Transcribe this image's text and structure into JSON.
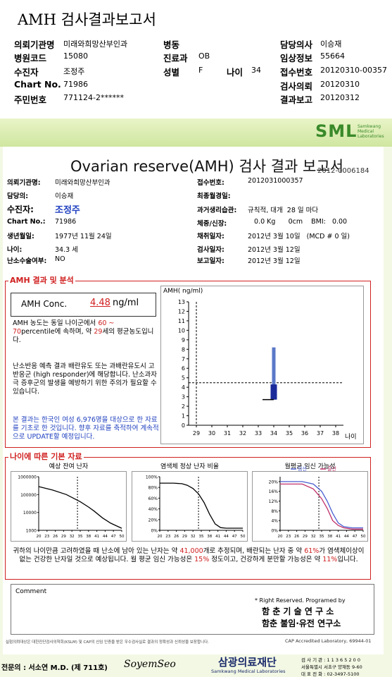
{
  "header": {
    "title": "AMH 검사결과보고서",
    "rows": [
      [
        {
          "label": "의뢰기관명",
          "value": "미래와희망산부인과"
        },
        {
          "label": "병동"
        },
        {
          "label": "담당의사",
          "value": "이승재"
        }
      ],
      [
        {
          "label": "병원코드",
          "value": "15080"
        },
        {
          "label": "진료과",
          "value": "OB"
        },
        {
          "label": "임상정보",
          "value": "55664"
        }
      ],
      [
        {
          "label": "수진자",
          "value": "조정주"
        },
        {
          "label": "성별",
          "value": "F"
        },
        {
          "label": "나이",
          "value": "34"
        },
        {
          "label": "접수번호",
          "value": "20120310-00357"
        }
      ],
      [
        {
          "label": "Chart No.",
          "value": "71986"
        },
        {
          "label": "검사의뢰",
          "value": "20120310"
        }
      ],
      [
        {
          "label": "주민번호",
          "value": "771124-2******"
        },
        {
          "label": "결과보고",
          "value": "20120312"
        }
      ]
    ]
  },
  "report": {
    "logo": "SML",
    "logo_sub": "Samkwang Medical Laboratories",
    "title": "Ovarian reserve(AMH) 검사 결과 보고서",
    "number": "2012-0006184",
    "left": [
      {
        "label": "의뢰기관명:",
        "value": "미래와희망산부인과"
      },
      {
        "label": "담당의:",
        "value": "이승재"
      },
      {
        "label": "수진자:",
        "value": "조정주"
      },
      {
        "label": "Chart No.:",
        "value": "71986"
      },
      {
        "label": "생년월일:",
        "value": "1977년 11월 24일"
      },
      {
        "label": "나이:",
        "value": "34.3 세"
      },
      {
        "label": "난소수술여부:",
        "value": "NO"
      }
    ],
    "right": [
      {
        "label": "접수번호:",
        "value": "2012031000357"
      },
      {
        "label": "최종월경일:"
      },
      {
        "label": "과거생리습관:",
        "value": "규칙적, 대개  28 일 마다"
      },
      {
        "label": "체중/신장:",
        "value": "   0.0 Kg      0cm    BMI:   0.00"
      },
      {
        "label": "채취일자:",
        "value": "2012년 3월 10일   (MCD # 0 일)"
      },
      {
        "label": "검사일자:",
        "value": "2012년 3월 12일"
      },
      {
        "label": "보고일자:",
        "value": "2012년 3월 12일"
      }
    ]
  },
  "amh": {
    "heading": "AMH 결과 및 분석",
    "conc_label": "AMH Conc.",
    "conc_value": "4.48",
    "conc_unit": "ng/ml",
    "para1": [
      "AMH 농도는 동일 나이군에서 ",
      "60 ~ 70",
      "percentile에 속하며, 약 ",
      "29",
      "세의 평균농도입니다."
    ],
    "para2": "난소반응 예측 결과 배란유도 또는 과배란유도시 고반응군 (high responder)에 해당합니다. 난소과자극 증후군의 발생을 예방하기 위한 주의가 필요할 수 있습니다.",
    "para3": "본 결과는 한국인 여성 6,976명을 대상으로 한 자료를 기초로 한 것입니다. 향후 자료를 축적하여 계속적으로 UPDATE할 예정입니다."
  },
  "amh_chart": {
    "ylabel": "AMH( ng/ml)",
    "xlabel": "나이",
    "ylim": [
      0,
      13
    ],
    "yticks": [
      0,
      1,
      2,
      3,
      4,
      5,
      6,
      7,
      8,
      9,
      10,
      11,
      12,
      13
    ],
    "xlim": [
      28.5,
      38.5
    ],
    "xticks": [
      29,
      30,
      31,
      32,
      33,
      34,
      35,
      36,
      37,
      38
    ],
    "bar_x": 34,
    "whisker": [
      2.7,
      8.2
    ],
    "box": [
      2.7,
      4.3
    ],
    "result": 4.48,
    "age_line": 29
  },
  "age_section": {
    "heading": "나이에 따른 기본 자료",
    "charts": [
      {
        "title": "예상 잔여 난자",
        "log": true,
        "ylim": [
          1000,
          1000000
        ],
        "yticks": [
          1000000,
          100000,
          10000,
          1000
        ],
        "xlim": [
          20,
          50
        ],
        "xticks": [
          20,
          23,
          26,
          29,
          32,
          35,
          38,
          41,
          44,
          47,
          50
        ],
        "marker_x": 34,
        "series": [
          {
            "color": "#000000",
            "x": [
              20,
              25,
              30,
              35,
              38,
              40,
              43,
              46,
              50
            ],
            "values": [
              280000,
              180000,
              100000,
              40000,
              20000,
              12000,
              5000,
              2500,
              1300
            ]
          }
        ]
      },
      {
        "title": "염색체 정상 난자 비율",
        "log": false,
        "ylim": [
          0,
          100
        ],
        "yticks": [
          {
            "value": 100,
            "label": "100%"
          },
          {
            "value": 80,
            "label": "80%"
          },
          {
            "value": 60,
            "label": "60%"
          },
          {
            "value": 40,
            "label": "40%"
          },
          {
            "value": 20,
            "label": "20%"
          },
          {
            "value": 0,
            "label": "0%"
          }
        ],
        "xlim": [
          20,
          50
        ],
        "xticks": [
          20,
          23,
          26,
          29,
          32,
          35,
          38,
          41,
          44,
          47,
          50
        ],
        "marker_x": 34,
        "series": [
          {
            "color": "#000000",
            "x": [
              20,
              25,
              28,
              30,
              32,
              34,
              36,
              38,
              40,
              42,
              44,
              46,
              50
            ],
            "values": [
              88,
              88,
              87,
              84,
              78,
              68,
              52,
              30,
              12,
              5,
              4,
              4,
              4
            ]
          }
        ]
      },
      {
        "title": "월평균 임신 가능성",
        "log": false,
        "ylim": [
          0,
          22
        ],
        "yticks": [
          {
            "value": 20,
            "label": "20%"
          },
          {
            "value": 16,
            "label": "16%"
          },
          {
            "value": 12,
            "label": "12%"
          },
          {
            "value": 8,
            "label": "8%"
          },
          {
            "value": 4,
            "label": "4%"
          },
          {
            "value": 0,
            "label": "0%"
          }
        ],
        "xlim": [
          20,
          50
        ],
        "xticks": [
          20,
          23,
          26,
          29,
          32,
          35,
          38,
          41,
          44,
          47,
          50
        ],
        "marker_x": 34,
        "series": [
          {
            "name": "임신",
            "color": "#4a5fd0",
            "x": [
              20,
              28,
              32,
              35,
              37,
              39,
              41,
              43,
              46,
              50
            ],
            "values": [
              20,
              20,
              19,
              16,
              12,
              7,
              3,
              1.5,
              1,
              1
            ]
          },
          {
            "name": "출산",
            "color": "#c0306a",
            "x": [
              20,
              28,
              32,
              35,
              37,
              39,
              41,
              43,
              46,
              50
            ],
            "values": [
              19,
              19,
              17,
              13,
              9,
              4,
              2,
              1,
              0.5,
              0.5
            ]
          }
        ]
      }
    ],
    "summary": [
      "귀하의 나이만큼 고려하였을 때 난소에 남아 있는 난자는 약 ",
      "41,000",
      "개로 추정되며, 배란되는 난자 중 약 ",
      "61%",
      "가 염색체이상이 없는 건강한 난자일 것으로 예상됩니다. 월 평균 임신 가능성은 ",
      "15%",
      " 정도이고, 건강하게 분만할 가능성은 약 ",
      "11%",
      "입니다."
    ]
  },
  "footer": {
    "comment": "Comment",
    "rights": "* Right Reserved. Programed by",
    "lab1": "함 춘 기 술 연 구 소",
    "lab2": "함춘 불임·유전 연구소",
    "fine": "실험의뢰대상은 대한진단검사의학회(KSLM) 및 CAP의 신임 인증을 받은 우수검사실로 결과의 정확성과 신뢰성을 보장합니다.",
    "cap": "CAP Accredited Laboratory, 69944-01",
    "doctor": "전문의 : 서소연 M.D. (제 711호)",
    "signature": "SoyemSeo",
    "org": "삼광의료재단",
    "org_en": "Samkwang Medical Laboratories",
    "addr": [
      "검 사 기 관 : 1 1 3 6 5 2 0 0",
      "서울특별시 서초구 양재동 9-60",
      "대 표 전 화 : 02-3497-5100"
    ]
  }
}
